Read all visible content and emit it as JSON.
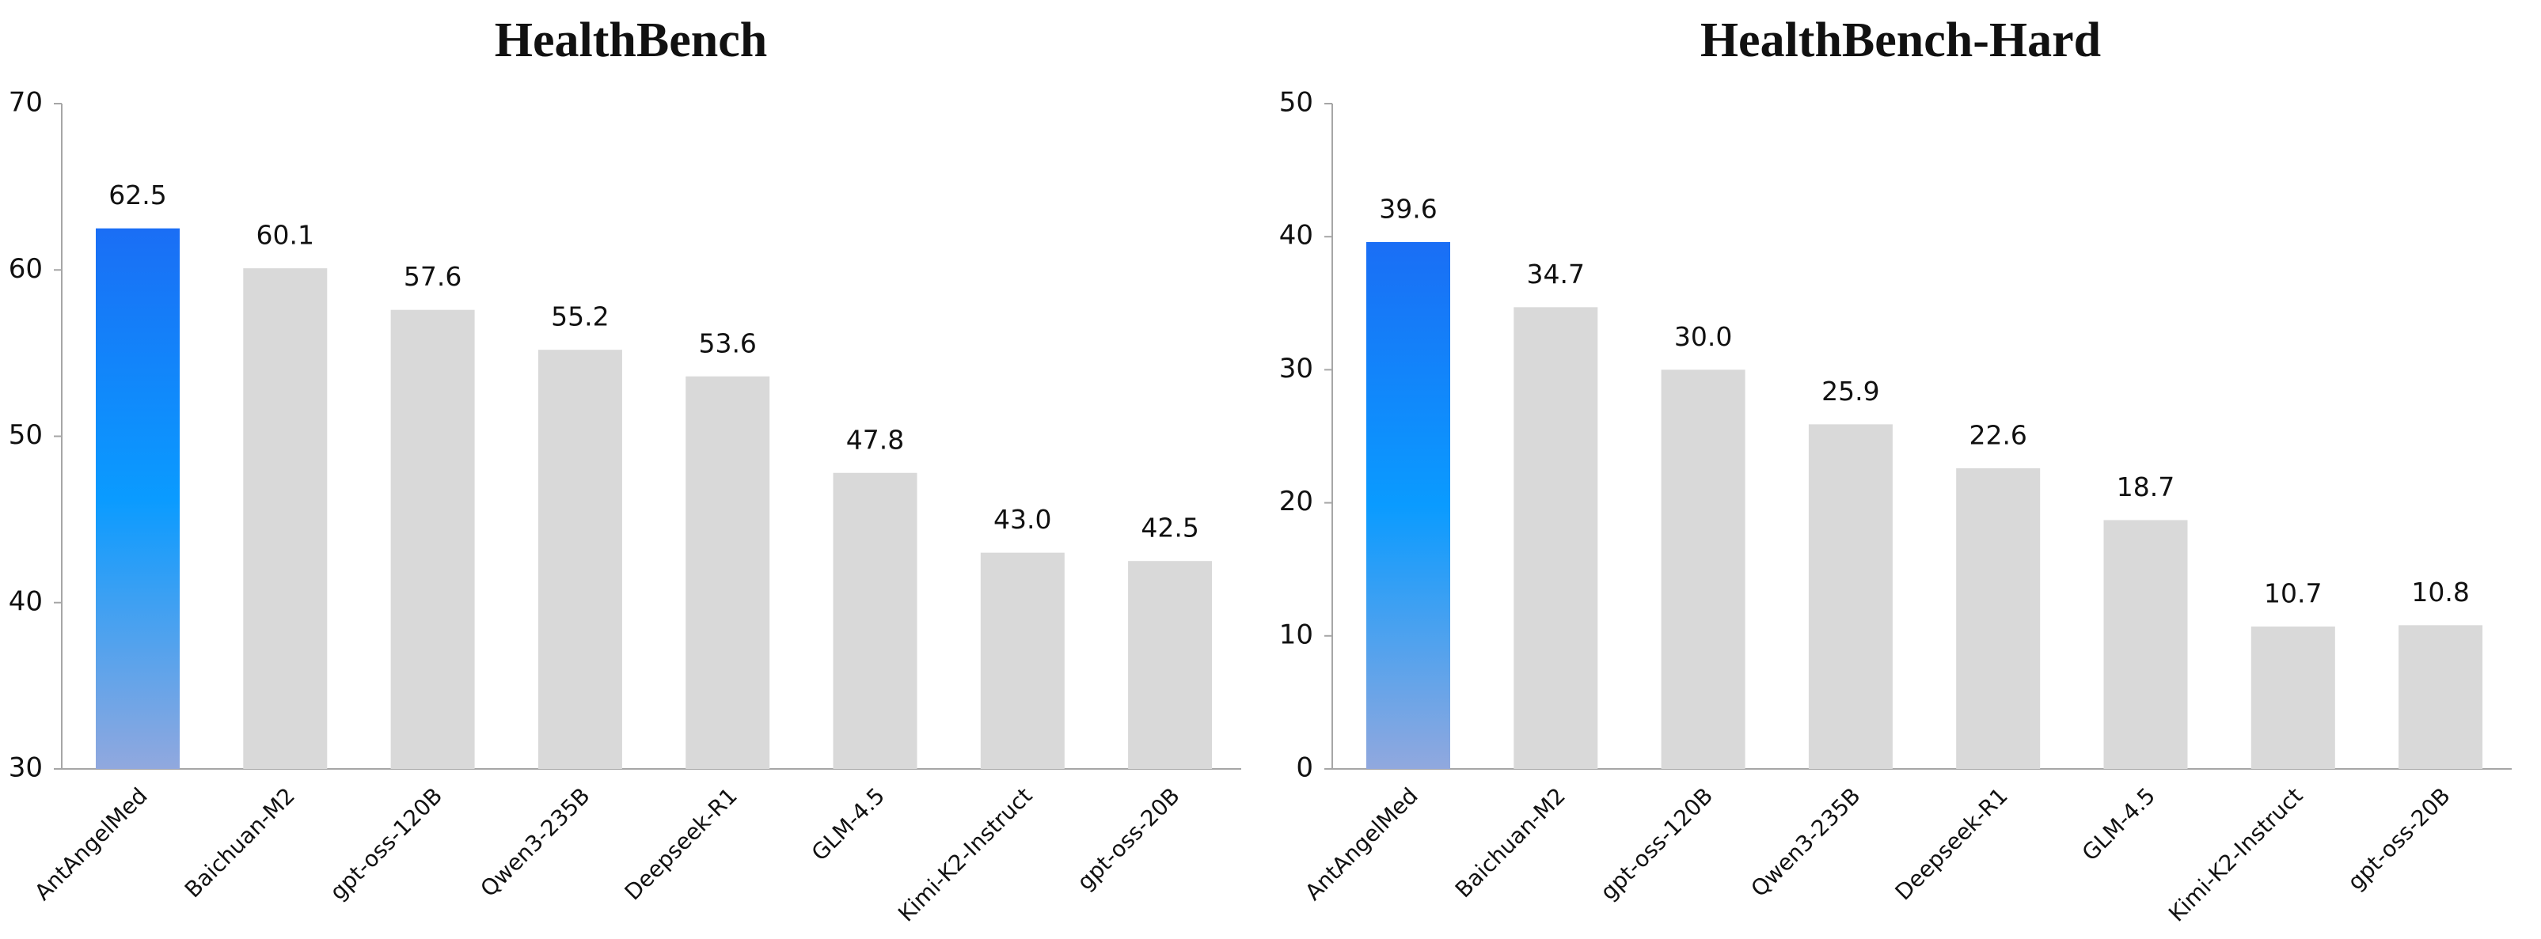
{
  "chart_data": [
    {
      "type": "bar",
      "title": "HealthBench",
      "categories": [
        "AntAngelMed",
        "Baichuan-M2",
        "gpt-oss-120B",
        "Qwen3-235B",
        "Deepseek-R1",
        "GLM-4.5",
        "Kimi-K2-Instruct",
        "gpt-oss-20B"
      ],
      "values": [
        62.5,
        60.1,
        57.6,
        55.2,
        53.6,
        47.8,
        43.0,
        42.5
      ],
      "value_labels": [
        "62.5",
        "60.1",
        "57.6",
        "55.2",
        "53.6",
        "47.8",
        "43.0",
        "42.5"
      ],
      "colors": [
        [
          "#1a6ef5",
          "#0a9bff",
          "#91a8de"
        ],
        "#d9d9d9",
        "#d9d9d9",
        "#d9d9d9",
        "#d9d9d9",
        "#d9d9d9",
        "#d9d9d9",
        "#d9d9d9"
      ],
      "ylim": [
        30,
        70
      ],
      "yticks": [
        30,
        40,
        50,
        60,
        70
      ],
      "grid": false
    },
    {
      "type": "bar",
      "title": "HealthBench-Hard",
      "categories": [
        "AntAngelMed",
        "Baichuan-M2",
        "gpt-oss-120B",
        "Qwen3-235B",
        "Deepseek-R1",
        "GLM-4.5",
        "Kimi-K2-Instruct",
        "gpt-oss-20B"
      ],
      "values": [
        39.6,
        34.7,
        30.0,
        25.9,
        22.6,
        18.7,
        10.7,
        10.8
      ],
      "value_labels": [
        "39.6",
        "34.7",
        "30.0",
        "25.9",
        "22.6",
        "18.7",
        "10.7",
        "10.8"
      ],
      "colors": [
        [
          "#1a6ef5",
          "#0a9bff",
          "#91a8de"
        ],
        "#d9d9d9",
        "#d9d9d9",
        "#d9d9d9",
        "#d9d9d9",
        "#d9d9d9",
        "#d9d9d9",
        "#d9d9d9"
      ],
      "ylim": [
        0,
        50
      ],
      "yticks": [
        0,
        10,
        20,
        30,
        40,
        50
      ],
      "grid": false
    }
  ]
}
